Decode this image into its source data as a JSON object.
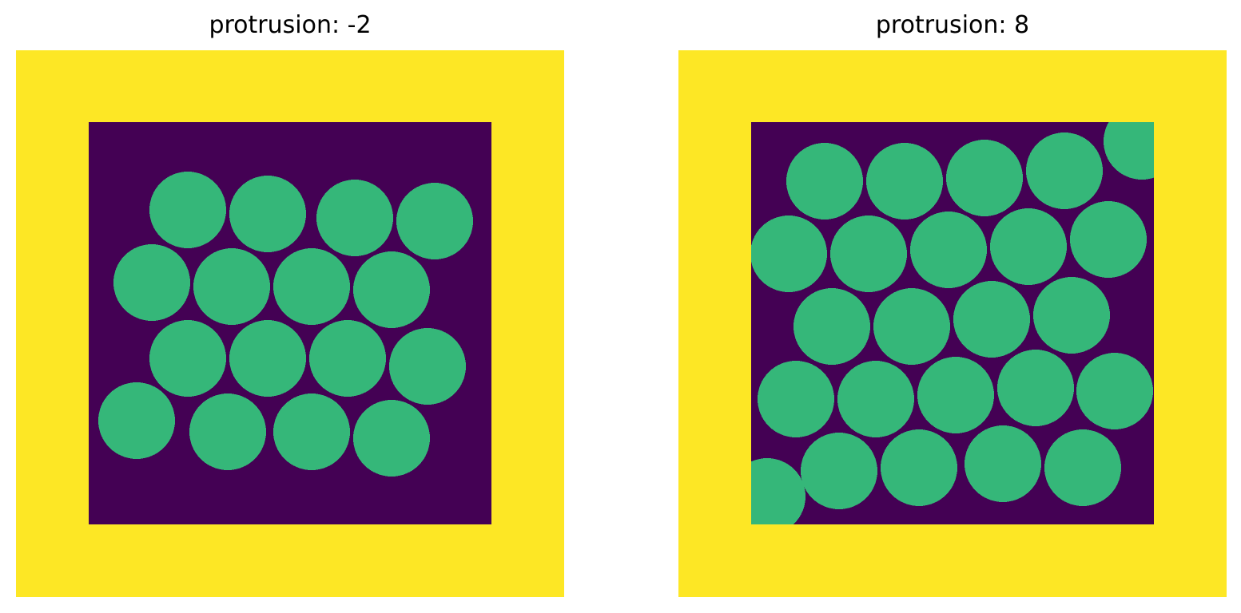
{
  "colors": {
    "border": "#fde725",
    "background": "#440154",
    "particle": "#35b779"
  },
  "panels": [
    {
      "title": "protrusion: -2",
      "circles": [
        [
          235,
          263
        ],
        [
          335,
          268
        ],
        [
          444,
          273
        ],
        [
          544,
          277
        ],
        [
          190,
          354
        ],
        [
          290,
          359
        ],
        [
          390,
          359
        ],
        [
          490,
          363
        ],
        [
          235,
          449
        ],
        [
          335,
          449
        ],
        [
          435,
          449
        ],
        [
          535,
          459
        ],
        [
          171,
          527
        ],
        [
          285,
          541
        ],
        [
          390,
          541
        ],
        [
          490,
          549
        ]
      ]
    },
    {
      "title": "protrusion: 8",
      "circles": [
        [
          1032,
          227
        ],
        [
          1132,
          227
        ],
        [
          1232,
          223
        ],
        [
          1332,
          214
        ],
        [
          1429,
          177
        ],
        [
          987,
          318
        ],
        [
          1087,
          318
        ],
        [
          1187,
          313
        ],
        [
          1287,
          309
        ],
        [
          1387,
          300
        ],
        [
          1041,
          409
        ],
        [
          1141,
          409
        ],
        [
          1241,
          400
        ],
        [
          1341,
          395
        ],
        [
          996,
          500
        ],
        [
          1096,
          500
        ],
        [
          1196,
          495
        ],
        [
          1296,
          486
        ],
        [
          1395,
          490
        ],
        [
          960,
          622
        ],
        [
          1050,
          590
        ],
        [
          1150,
          586
        ],
        [
          1255,
          581
        ],
        [
          1355,
          586
        ]
      ]
    }
  ]
}
